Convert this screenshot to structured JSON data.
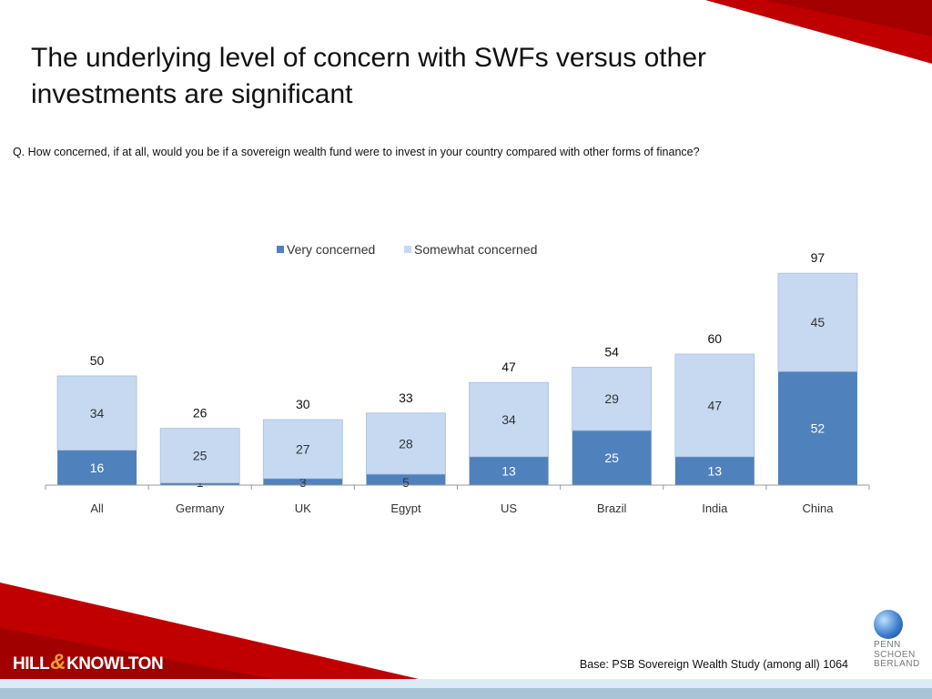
{
  "title": "The underlying  level of concern with SWFs versus other investments are significant",
  "question": "Q. How concerned, if at all, would you be if a sovereign wealth fund were to invest in your country compared with other forms of finance?",
  "footer": {
    "base_note": "Base: PSB Sovereign Wealth Study (among all) 1064",
    "logo_left": {
      "part1": "HILL",
      "amp": "&",
      "part2": "KNOWLTON"
    },
    "logo_right": {
      "line1": "PENN",
      "line2": "SCHOEN",
      "line3": "BERLAND",
      "initials": [
        "P",
        "S",
        "B"
      ]
    }
  },
  "colors": {
    "very": "#4f81bd",
    "somewhat": "#c6d9f1",
    "accent_red": "#c00000"
  },
  "chart_data": {
    "type": "bar",
    "stacked": true,
    "categories": [
      "All",
      "Germany",
      "UK",
      "Egypt",
      "US",
      "Brazil",
      "India",
      "China"
    ],
    "series": [
      {
        "name": "Very concerned",
        "values": [
          16,
          1,
          3,
          5,
          13,
          25,
          13,
          52
        ]
      },
      {
        "name": "Somewhat concerned",
        "values": [
          34,
          25,
          27,
          28,
          34,
          29,
          47,
          45
        ]
      }
    ],
    "totals": [
      50,
      26,
      30,
      33,
      47,
      54,
      60,
      97
    ],
    "legend": "top",
    "grid": false,
    "ylim": [
      0,
      100
    ]
  }
}
